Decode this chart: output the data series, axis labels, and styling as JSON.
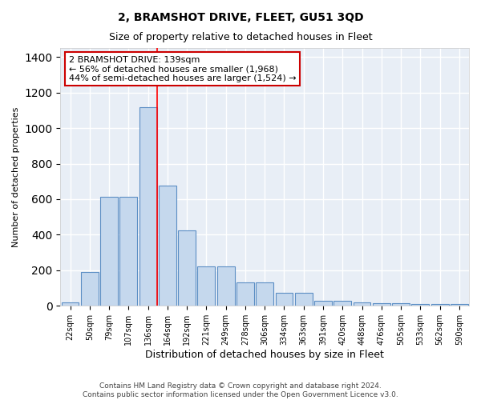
{
  "title": "2, BRAMSHOT DRIVE, FLEET, GU51 3QD",
  "subtitle": "Size of property relative to detached houses in Fleet",
  "xlabel": "Distribution of detached houses by size in Fleet",
  "ylabel": "Number of detached properties",
  "categories": [
    "22sqm",
    "50sqm",
    "79sqm",
    "107sqm",
    "136sqm",
    "164sqm",
    "192sqm",
    "221sqm",
    "249sqm",
    "278sqm",
    "306sqm",
    "334sqm",
    "363sqm",
    "391sqm",
    "420sqm",
    "448sqm",
    "476sqm",
    "505sqm",
    "533sqm",
    "562sqm",
    "590sqm"
  ],
  "values": [
    18,
    190,
    615,
    615,
    1115,
    675,
    425,
    220,
    220,
    130,
    130,
    73,
    73,
    28,
    28,
    18,
    14,
    14,
    10,
    10,
    10
  ],
  "bar_color": "#c5d8ed",
  "bar_edge_color": "#5b8ec4",
  "red_line_index": 4,
  "annotation_text": "2 BRAMSHOT DRIVE: 139sqm\n← 56% of detached houses are smaller (1,968)\n44% of semi-detached houses are larger (1,524) →",
  "annotation_box_color": "#ffffff",
  "annotation_box_edge_color": "#cc0000",
  "footer1": "Contains HM Land Registry data © Crown copyright and database right 2024.",
  "footer2": "Contains public sector information licensed under the Open Government Licence v3.0.",
  "background_color": "#e8eef6",
  "plot_bg_color": "#e8eef6",
  "ylim": [
    0,
    1450
  ],
  "grid_color": "#ffffff",
  "title_fontsize": 10,
  "subtitle_fontsize": 9,
  "xlabel_fontsize": 9,
  "ylabel_fontsize": 8,
  "tick_fontsize": 7,
  "annotation_fontsize": 8,
  "footer_fontsize": 6.5
}
